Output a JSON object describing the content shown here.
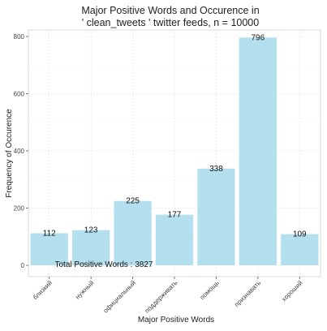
{
  "chart_data": {
    "type": "bar",
    "title_line1": "Major Positive Words and Occurence in",
    "title_line2": "' clean_tweets ' twitter feeds, n = 10000",
    "xlabel": "Major Positive Words",
    "ylabel": "Frequency of Occurence",
    "categories": [
      "близкий",
      "нужный",
      "официальный",
      "поддерживать",
      "помощь",
      "признавать",
      "хороший"
    ],
    "values": [
      112,
      123,
      225,
      177,
      338,
      796,
      109
    ],
    "data_labels": [
      "112",
      "123",
      "225",
      "177",
      "338",
      "796",
      "109"
    ],
    "ylim": [
      0,
      840
    ],
    "yticks": [
      0,
      200,
      400,
      600,
      800
    ],
    "ytick_labels": [
      "0",
      "200",
      "400",
      "600",
      "800"
    ],
    "annotation": "Total Positive Words : 3827",
    "grid": true,
    "bar_color": "#b3dfee",
    "grid_color": "#e6e6e6",
    "panel_border_color": "#d9d9d9"
  }
}
